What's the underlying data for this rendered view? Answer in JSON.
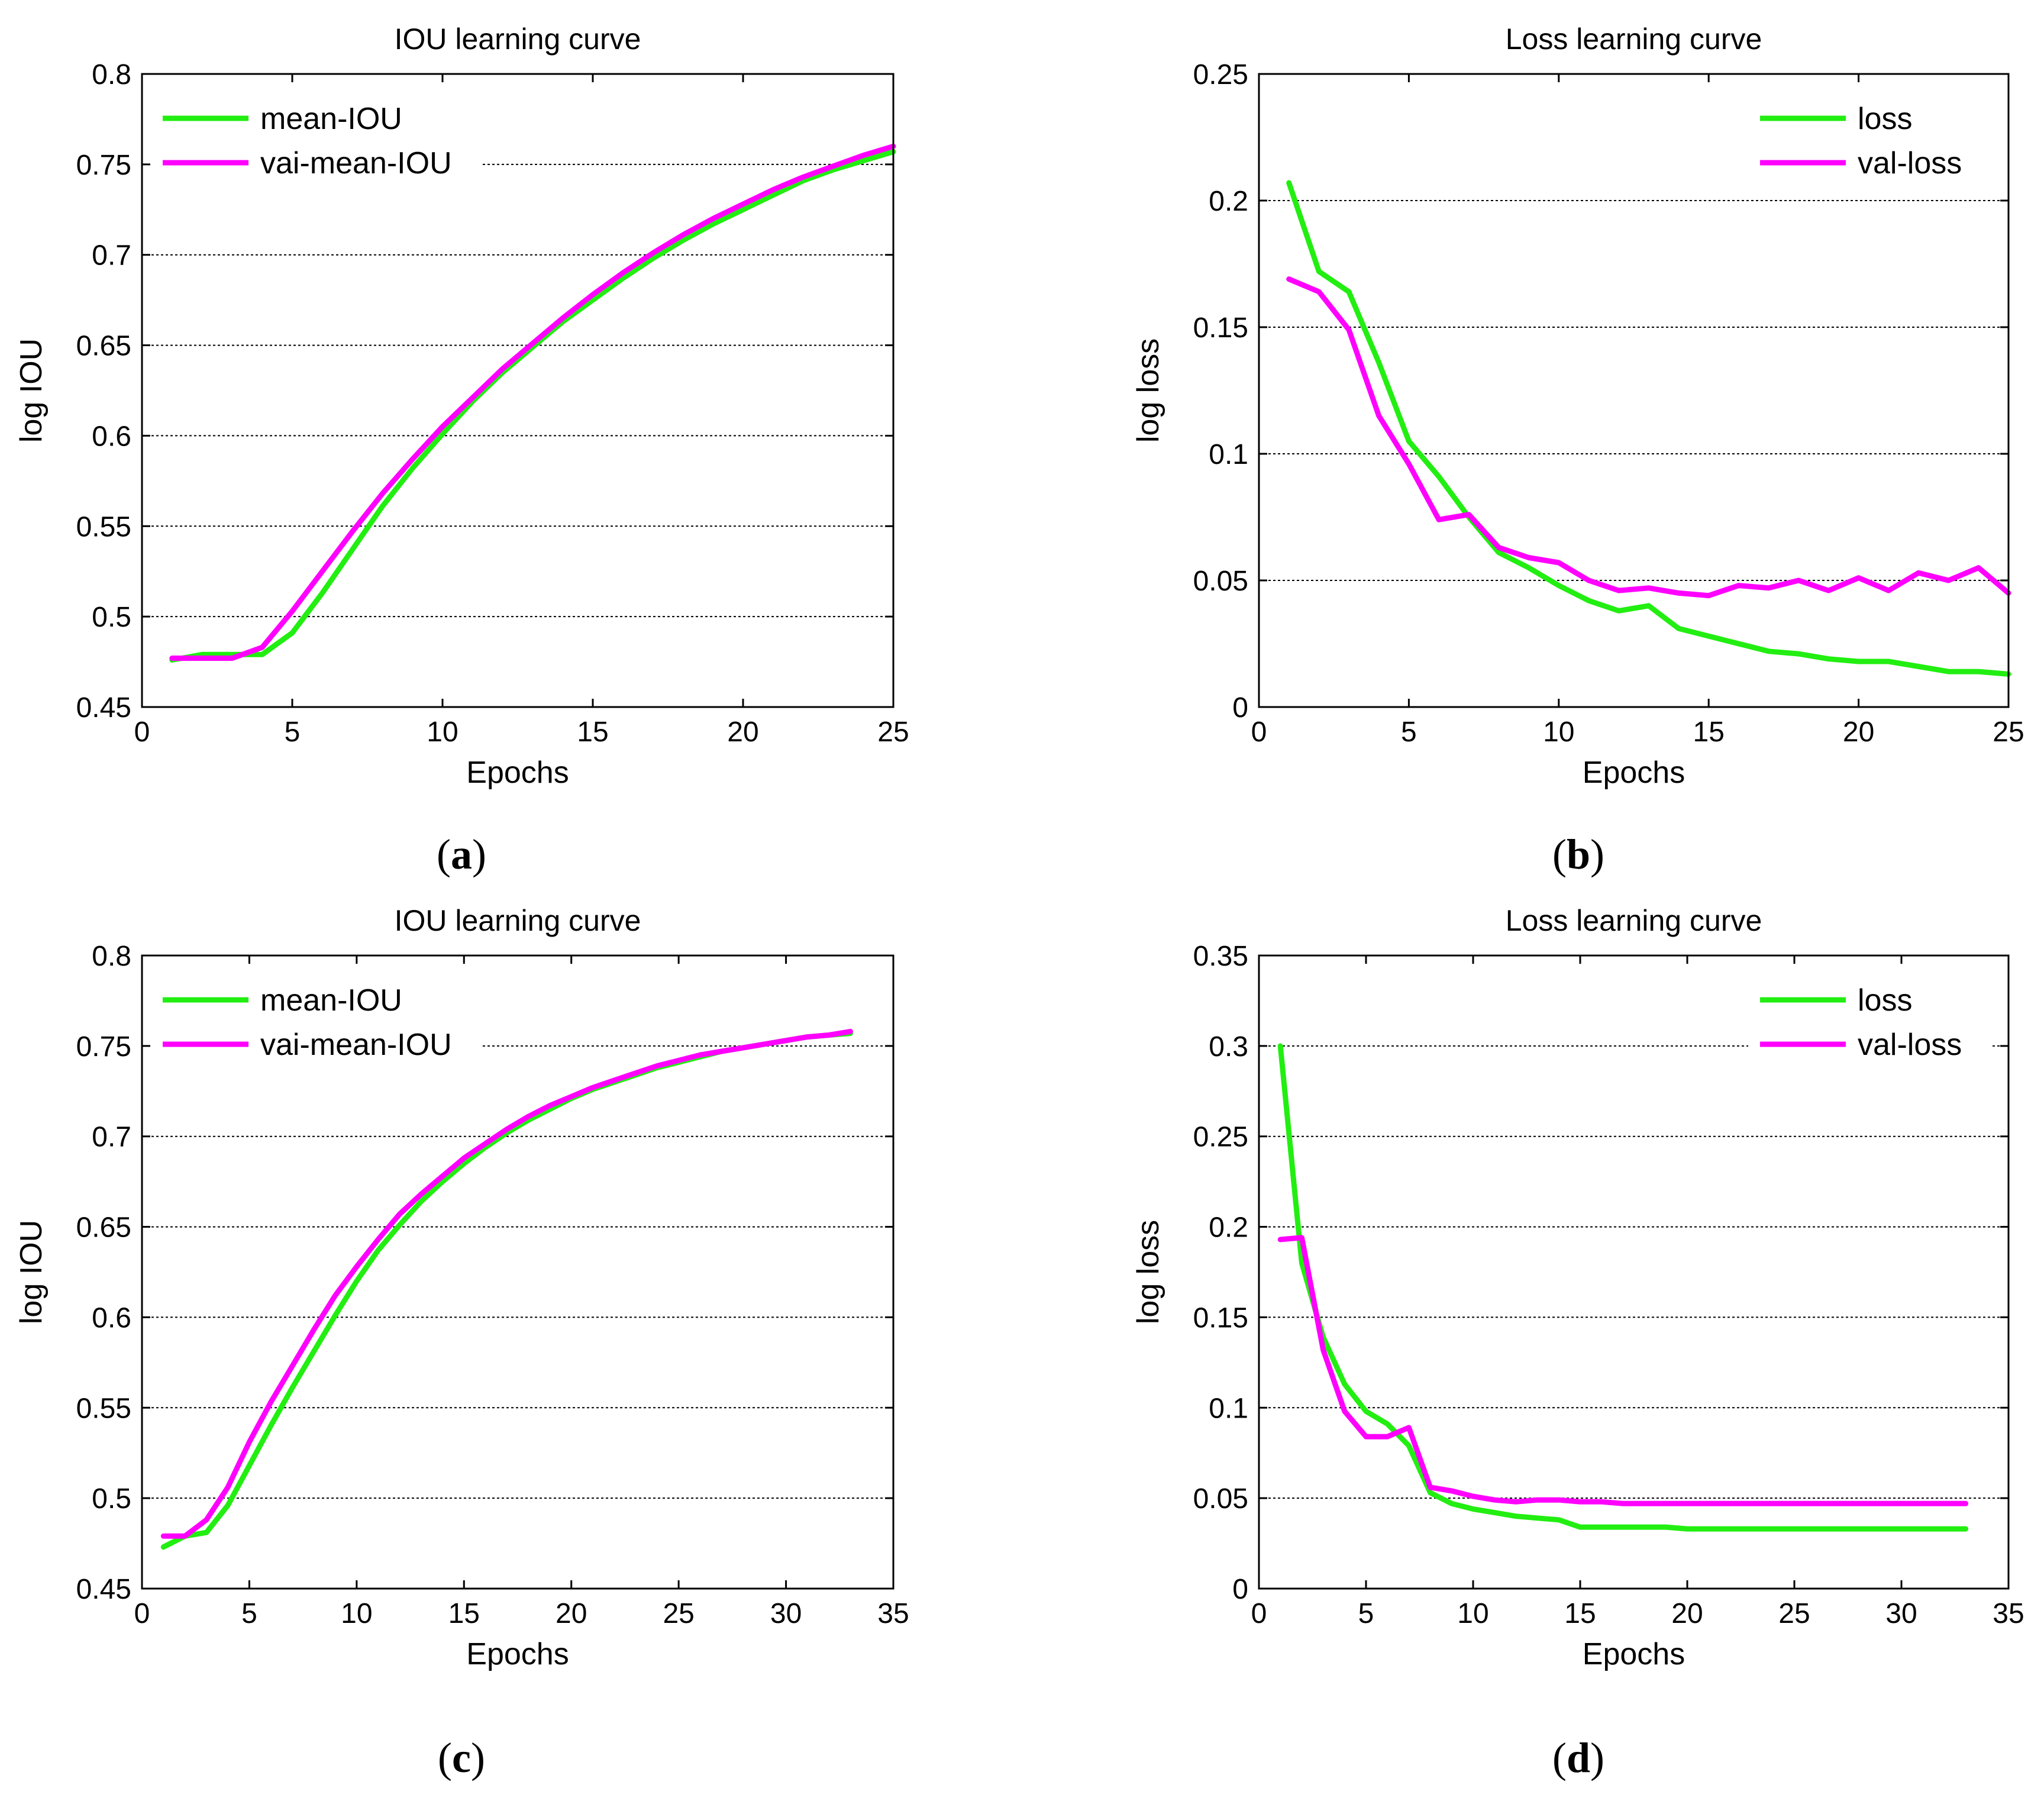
{
  "colors": {
    "green": "#22ee11",
    "magenta": "#ff00ff"
  },
  "chart_data": [
    {
      "panel": "a",
      "caption": "(a)",
      "type": "line",
      "title": "IOU learning curve",
      "xlabel": "Epochs",
      "ylabel": "log IOU",
      "xlim": [
        0,
        25
      ],
      "ylim": [
        0.45,
        0.8
      ],
      "xticks": [
        "0",
        "5",
        "10",
        "15",
        "20",
        "25"
      ],
      "yticks": [
        "0.45",
        "0.5",
        "0.55",
        "0.6",
        "0.65",
        "0.7",
        "0.75",
        "0.8"
      ],
      "grid": "horizontal dotted",
      "legend_position": "top-left",
      "x": [
        1,
        2,
        3,
        4,
        5,
        6,
        7,
        8,
        9,
        10,
        11,
        12,
        13,
        14,
        15,
        16,
        17,
        18,
        19,
        20,
        21,
        22,
        23,
        24,
        25
      ],
      "series": [
        {
          "name": "mean-IOU",
          "color": "#22ee11",
          "values": [
            0.476,
            0.479,
            0.479,
            0.479,
            0.491,
            0.513,
            0.537,
            0.561,
            0.582,
            0.601,
            0.619,
            0.635,
            0.649,
            0.663,
            0.675,
            0.687,
            0.698,
            0.708,
            0.717,
            0.725,
            0.733,
            0.741,
            0.747,
            0.752,
            0.757
          ]
        },
        {
          "name": "vai-mean-IOU",
          "color": "#ff00ff",
          "values": [
            0.477,
            0.477,
            0.477,
            0.483,
            0.503,
            0.525,
            0.547,
            0.568,
            0.587,
            0.605,
            0.621,
            0.637,
            0.651,
            0.665,
            0.678,
            0.69,
            0.701,
            0.711,
            0.72,
            0.728,
            0.736,
            0.743,
            0.749,
            0.755,
            0.76
          ]
        }
      ]
    },
    {
      "panel": "b",
      "caption": "(b)",
      "type": "line",
      "title": "Loss learning curve",
      "xlabel": "Epochs",
      "ylabel": "log loss",
      "xlim": [
        0,
        25
      ],
      "ylim": [
        0,
        0.25
      ],
      "xticks": [
        "0",
        "5",
        "10",
        "15",
        "20",
        "25"
      ],
      "yticks": [
        "0",
        "0.05",
        "0.1",
        "0.15",
        "0.2",
        "0.25"
      ],
      "grid": "horizontal dotted",
      "legend_position": "top-right",
      "x": [
        1,
        2,
        3,
        4,
        5,
        6,
        7,
        8,
        9,
        10,
        11,
        12,
        13,
        14,
        15,
        16,
        17,
        18,
        19,
        20,
        21,
        22,
        23,
        24,
        25
      ],
      "series": [
        {
          "name": "loss",
          "color": "#22ee11",
          "values": [
            0.207,
            0.172,
            0.164,
            0.136,
            0.105,
            0.091,
            0.075,
            0.061,
            0.055,
            0.048,
            0.042,
            0.038,
            0.04,
            0.031,
            0.028,
            0.025,
            0.022,
            0.021,
            0.019,
            0.018,
            0.018,
            0.016,
            0.014,
            0.014,
            0.013
          ]
        },
        {
          "name": "val-loss",
          "color": "#ff00ff",
          "values": [
            0.169,
            0.164,
            0.149,
            0.115,
            0.096,
            0.074,
            0.076,
            0.063,
            0.059,
            0.057,
            0.05,
            0.046,
            0.047,
            0.045,
            0.044,
            0.048,
            0.047,
            0.05,
            0.046,
            0.051,
            0.046,
            0.053,
            0.05,
            0.055,
            0.045
          ]
        }
      ]
    },
    {
      "panel": "c",
      "caption": "(c)",
      "type": "line",
      "title": "IOU learning curve",
      "xlabel": "Epochs",
      "ylabel": "log IOU",
      "xlim": [
        0,
        35
      ],
      "ylim": [
        0.45,
        0.8
      ],
      "xticks": [
        "0",
        "5",
        "10",
        "15",
        "20",
        "25",
        "30",
        "35"
      ],
      "yticks": [
        "0.45",
        "0.5",
        "0.55",
        "0.6",
        "0.65",
        "0.7",
        "0.75",
        "0.8"
      ],
      "grid": "horizontal dotted",
      "legend_position": "top-left",
      "x": [
        1,
        2,
        3,
        4,
        5,
        6,
        7,
        8,
        9,
        10,
        11,
        12,
        13,
        14,
        15,
        16,
        17,
        18,
        19,
        20,
        21,
        22,
        23,
        24,
        25,
        26,
        27,
        28,
        29,
        30,
        31,
        32,
        33
      ],
      "series": [
        {
          "name": "mean-IOU",
          "color": "#22ee11",
          "values": [
            0.473,
            0.479,
            0.481,
            0.496,
            0.518,
            0.54,
            0.561,
            0.581,
            0.601,
            0.62,
            0.637,
            0.651,
            0.664,
            0.675,
            0.685,
            0.694,
            0.702,
            0.709,
            0.715,
            0.721,
            0.726,
            0.73,
            0.734,
            0.738,
            0.741,
            0.744,
            0.747,
            0.749,
            0.751,
            0.753,
            0.755,
            0.756,
            0.757
          ]
        },
        {
          "name": "vai-mean-IOU",
          "color": "#ff00ff",
          "values": [
            0.479,
            0.479,
            0.488,
            0.506,
            0.531,
            0.553,
            0.573,
            0.593,
            0.612,
            0.628,
            0.643,
            0.657,
            0.668,
            0.678,
            0.688,
            0.696,
            0.704,
            0.711,
            0.717,
            0.722,
            0.727,
            0.731,
            0.735,
            0.739,
            0.742,
            0.745,
            0.747,
            0.749,
            0.751,
            0.753,
            0.755,
            0.756,
            0.758
          ]
        }
      ]
    },
    {
      "panel": "d",
      "caption": "(d)",
      "type": "line",
      "title": "Loss learning curve",
      "xlabel": "Epochs",
      "ylabel": "log loss",
      "xlim": [
        0,
        35
      ],
      "ylim": [
        0,
        0.35
      ],
      "xticks": [
        "0",
        "5",
        "10",
        "15",
        "20",
        "25",
        "30",
        "35"
      ],
      "yticks": [
        "0",
        "0.05",
        "0.1",
        "0.15",
        "0.2",
        "0.25",
        "0.3",
        "0.35"
      ],
      "grid": "horizontal dotted",
      "legend_position": "top-right",
      "x": [
        1,
        2,
        3,
        4,
        5,
        6,
        7,
        8,
        9,
        10,
        11,
        12,
        13,
        14,
        15,
        16,
        17,
        18,
        19,
        20,
        21,
        22,
        23,
        24,
        25,
        26,
        27,
        28,
        29,
        30,
        31,
        32,
        33
      ],
      "series": [
        {
          "name": "loss",
          "color": "#22ee11",
          "values": [
            0.3,
            0.18,
            0.139,
            0.113,
            0.098,
            0.091,
            0.079,
            0.053,
            0.047,
            0.044,
            0.042,
            0.04,
            0.039,
            0.038,
            0.034,
            0.034,
            0.034,
            0.034,
            0.034,
            0.033,
            0.033,
            0.033,
            0.033,
            0.033,
            0.033,
            0.033,
            0.033,
            0.033,
            0.033,
            0.033,
            0.033,
            0.033,
            0.033
          ]
        },
        {
          "name": "val-loss",
          "color": "#ff00ff",
          "values": [
            0.193,
            0.194,
            0.132,
            0.098,
            0.084,
            0.084,
            0.089,
            0.056,
            0.054,
            0.051,
            0.049,
            0.048,
            0.049,
            0.049,
            0.048,
            0.048,
            0.047,
            0.047,
            0.047,
            0.047,
            0.047,
            0.047,
            0.047,
            0.047,
            0.047,
            0.047,
            0.047,
            0.047,
            0.047,
            0.047,
            0.047,
            0.047,
            0.047
          ]
        }
      ]
    }
  ]
}
